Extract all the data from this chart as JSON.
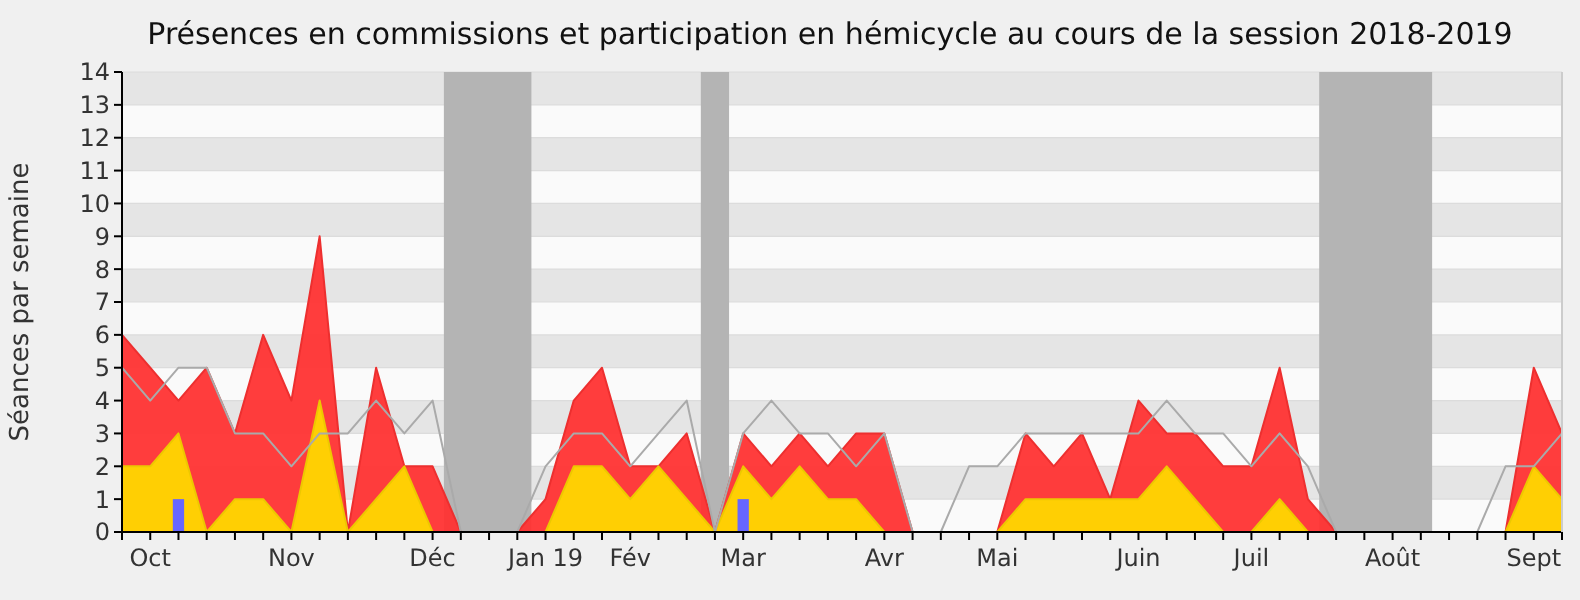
{
  "chart_data": {
    "type": "area",
    "title": "Présences en commissions et participation en hémicycle au cours de la session 2018-2019",
    "ylabel": "Séances par semaine",
    "categories": [
      null,
      "Oct",
      null,
      null,
      null,
      null,
      "Nov",
      null,
      null,
      null,
      null,
      "Déc",
      null,
      null,
      null,
      "Jan 19",
      null,
      null,
      "Fév",
      null,
      null,
      null,
      "Mar",
      null,
      null,
      null,
      null,
      "Avr",
      null,
      null,
      null,
      "Mai",
      null,
      null,
      null,
      null,
      "Juin",
      null,
      null,
      null,
      "Juil",
      null,
      null,
      null,
      null,
      "Août",
      null,
      null,
      null,
      null,
      "Sept",
      null
    ],
    "ylim": [
      0,
      14
    ],
    "yticks": [
      0,
      1,
      2,
      3,
      4,
      5,
      6,
      7,
      8,
      9,
      10,
      11,
      12,
      13,
      14
    ],
    "grid": "y",
    "series": [
      {
        "color": "#ff3333",
        "values": [
          6,
          5,
          4,
          5,
          3,
          6,
          4,
          9,
          0,
          5,
          2,
          2,
          0,
          0,
          0,
          1,
          4,
          5,
          2,
          2,
          3,
          0,
          3,
          2,
          3,
          2,
          3,
          3,
          0,
          0,
          0,
          0,
          3,
          2,
          3,
          1,
          4,
          3,
          3,
          2,
          2,
          5,
          1,
          0,
          0,
          0,
          0,
          0,
          0,
          0,
          5,
          3
        ]
      },
      {
        "color": "#ffd700",
        "values": [
          2,
          2,
          3,
          0,
          1,
          1,
          0,
          4,
          0,
          1,
          2,
          0,
          0,
          0,
          0,
          0,
          2,
          2,
          1,
          2,
          1,
          0,
          2,
          1,
          2,
          1,
          1,
          0,
          0,
          0,
          0,
          0,
          1,
          1,
          1,
          1,
          1,
          2,
          1,
          0,
          0,
          1,
          0,
          0,
          0,
          0,
          0,
          0,
          0,
          0,
          2,
          1
        ]
      },
      {
        "type": "line",
        "color": "#aaaaaa",
        "values": [
          5,
          4,
          5,
          5,
          3,
          3,
          2,
          3,
          3,
          4,
          3,
          4,
          0,
          0,
          0,
          2,
          3,
          3,
          2,
          3,
          4,
          0,
          3,
          4,
          3,
          3,
          2,
          3,
          0,
          0,
          2,
          2,
          3,
          3,
          3,
          3,
          3,
          4,
          3,
          3,
          2,
          3,
          2,
          0,
          0,
          0,
          0,
          0,
          0,
          2,
          2,
          3
        ]
      },
      {
        "type": "bar",
        "color": "#6666ff",
        "values": [
          null,
          null,
          1,
          null,
          null,
          null,
          null,
          null,
          null,
          null,
          null,
          null,
          null,
          null,
          null,
          null,
          null,
          null,
          null,
          null,
          null,
          null,
          1,
          null,
          null,
          null,
          null,
          null,
          null,
          null,
          null,
          null,
          null,
          null,
          null,
          null,
          null,
          null,
          null,
          null,
          null,
          null,
          null,
          null,
          null,
          null,
          null,
          null,
          null,
          null,
          null,
          null
        ]
      }
    ]
  }
}
